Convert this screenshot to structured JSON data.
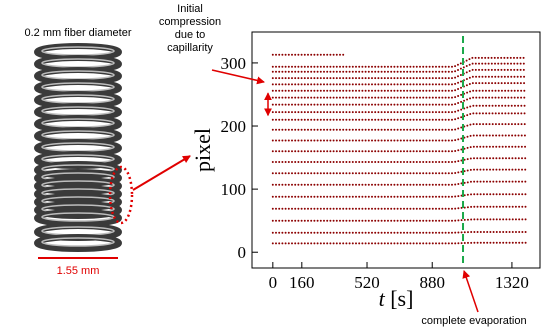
{
  "chart_data": {
    "type": "line",
    "ylabel": "pixel",
    "xlabel_symbol": "t",
    "xlabel_unit": "[s]",
    "x": [
      0,
      100,
      200,
      300,
      400,
      500,
      600,
      700,
      800,
      900,
      1000,
      1100,
      1200,
      1300,
      1400
    ],
    "color": "#8b0000",
    "series": [
      {
        "values": [
          14,
          14,
          14,
          14,
          14,
          14,
          14,
          14,
          14,
          14,
          14,
          15,
          15,
          15,
          15
        ]
      },
      {
        "values": [
          31,
          31,
          31,
          31,
          31,
          31,
          31,
          31,
          31,
          31,
          31,
          32,
          32,
          32,
          32
        ]
      },
      {
        "values": [
          50,
          50,
          50,
          50,
          50,
          50,
          50,
          50,
          50,
          50,
          50,
          52,
          52,
          52,
          52
        ]
      },
      {
        "values": [
          69,
          69,
          69,
          69,
          69,
          69,
          69,
          69,
          69,
          69,
          69,
          72,
          72,
          72,
          72
        ]
      },
      {
        "values": [
          88,
          88,
          88,
          88,
          88,
          88,
          88,
          88,
          88,
          88,
          88,
          92,
          92,
          92,
          92
        ]
      },
      {
        "values": [
          107,
          107,
          107,
          107,
          107,
          107,
          107,
          107,
          107,
          107,
          107,
          112,
          112,
          112,
          112
        ]
      },
      {
        "values": [
          125,
          125,
          125,
          125,
          125,
          125,
          125,
          125,
          125,
          125,
          125,
          131,
          131,
          131,
          131
        ]
      },
      {
        "values": [
          143,
          143,
          143,
          143,
          143,
          143,
          143,
          143,
          143,
          143,
          143,
          149,
          149,
          149,
          149
        ]
      },
      {
        "values": [
          160,
          160,
          160,
          160,
          160,
          160,
          160,
          160,
          160,
          160,
          160,
          167,
          167,
          167,
          167
        ]
      },
      {
        "values": [
          177,
          177,
          177,
          177,
          177,
          177,
          177,
          177,
          177,
          177,
          177,
          185,
          185,
          185,
          185
        ]
      },
      {
        "values": [
          194,
          194,
          194,
          194,
          194,
          194,
          194,
          194,
          194,
          194,
          194,
          203,
          203,
          203,
          203
        ]
      },
      {
        "values": [
          210,
          210,
          210,
          210,
          210,
          210,
          210,
          210,
          210,
          210,
          210,
          220,
          220,
          220,
          220
        ]
      },
      {
        "values": [
          222,
          222,
          222,
          222,
          222,
          222,
          222,
          222,
          222,
          222,
          222,
          232,
          232,
          232,
          232
        ]
      },
      {
        "values": [
          234,
          234,
          234,
          234,
          234,
          234,
          234,
          234,
          234,
          234,
          234,
          245,
          245,
          245,
          245
        ]
      },
      {
        "values": [
          245,
          245,
          245,
          245,
          245,
          245,
          245,
          245,
          245,
          245,
          245,
          256,
          256,
          256,
          256
        ]
      },
      {
        "values": [
          256,
          256,
          256,
          256,
          256,
          256,
          256,
          256,
          256,
          256,
          256,
          268,
          268,
          268,
          268
        ]
      },
      {
        "values": [
          266,
          266,
          266,
          266,
          266,
          266,
          266,
          266,
          266,
          266,
          266,
          278,
          278,
          278,
          278
        ]
      },
      {
        "values": [
          276,
          276,
          276,
          276,
          276,
          276,
          276,
          276,
          276,
          276,
          276,
          289,
          289,
          289,
          289
        ]
      },
      {
        "values": [
          286,
          286,
          286,
          286,
          286,
          286,
          286,
          286,
          286,
          286,
          286,
          299,
          299,
          299,
          299
        ]
      },
      {
        "values": [
          294,
          294,
          294,
          294,
          294,
          294,
          294,
          294,
          294,
          294,
          294,
          308,
          308,
          308,
          308
        ]
      },
      {
        "values": [
          313,
          313,
          313,
          313,
          313,
          null,
          null,
          null,
          null,
          null,
          null,
          null,
          null,
          null,
          null
        ]
      }
    ],
    "xlim": [
      -115,
      1475
    ],
    "ylim": [
      -25,
      349
    ],
    "xticks": [
      0,
      160,
      520,
      880,
      1320
    ],
    "yticks": [
      0,
      100,
      200,
      300
    ],
    "evaporation_x": 1050,
    "compression_range": [
      217,
      252
    ],
    "annotation_compression": [
      "Initial",
      "compression",
      "due to",
      "capillarity"
    ],
    "annotation_evaporation": "complete evaporation",
    "image_caption": "0.2 mm fiber diameter",
    "scale_bar_label": "1.55 mm"
  }
}
